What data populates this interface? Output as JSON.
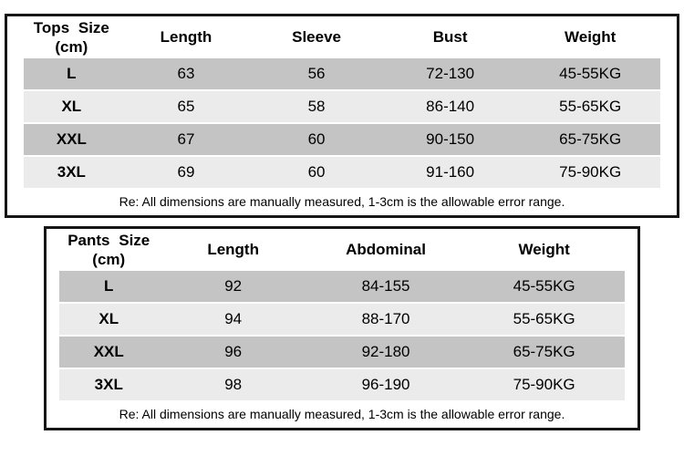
{
  "colors": {
    "background": "#ffffff",
    "table_border": "#161616",
    "row_dark": "#c4c4c4",
    "row_light": "#ebebeb",
    "text": "#000000"
  },
  "chart_data": [
    {
      "type": "table",
      "title": "Tops Size (cm)",
      "header": {
        "title_line1": "Tops Size",
        "title_line2": "(cm)",
        "columns": [
          "Length",
          "Sleeve",
          "Bust",
          "Weight"
        ]
      },
      "rows": [
        {
          "size": "L",
          "values": [
            "63",
            "56",
            "72-130",
            "45-55KG"
          ]
        },
        {
          "size": "XL",
          "values": [
            "65",
            "58",
            "86-140",
            "55-65KG"
          ]
        },
        {
          "size": "XXL",
          "values": [
            "67",
            "60",
            "90-150",
            "65-75KG"
          ]
        },
        {
          "size": "3XL",
          "values": [
            "69",
            "60",
            "91-160",
            "75-90KG"
          ]
        }
      ],
      "note": "Re: All dimensions are manually measured, 1-3cm is the allowable error range."
    },
    {
      "type": "table",
      "title": "Pants Size (cm)",
      "header": {
        "title_line1": "Pants Size",
        "title_line2": "(cm)",
        "columns": [
          "Length",
          "Abdominal",
          "Weight"
        ]
      },
      "rows": [
        {
          "size": "L",
          "values": [
            "92",
            "84-155",
            "45-55KG"
          ]
        },
        {
          "size": "XL",
          "values": [
            "94",
            "88-170",
            "55-65KG"
          ]
        },
        {
          "size": "XXL",
          "values": [
            "96",
            "92-180",
            "65-75KG"
          ]
        },
        {
          "size": "3XL",
          "values": [
            "98",
            "96-190",
            "75-90KG"
          ]
        }
      ],
      "note": "Re: All dimensions are manually measured, 1-3cm is the allowable error range."
    }
  ]
}
